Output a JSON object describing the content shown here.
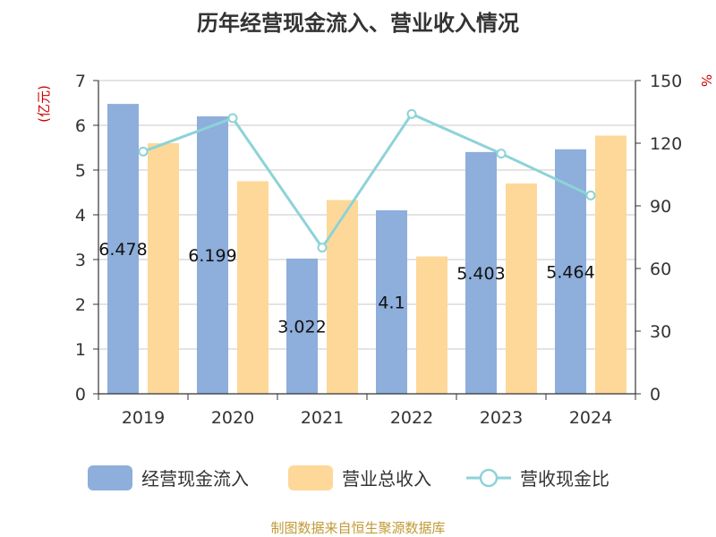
{
  "chart_data": {
    "type": "bar",
    "title": "历年经营现金流入、营业收入情况",
    "categories": [
      "2019",
      "2020",
      "2021",
      "2022",
      "2023",
      "2024"
    ],
    "left_axis_unit": "(亿元)",
    "right_axis_unit": "%",
    "left_ylim": [
      0,
      7
    ],
    "left_ticks": [
      0,
      1,
      2,
      3,
      4,
      5,
      6,
      7
    ],
    "right_ylim": [
      0,
      150
    ],
    "right_ticks": [
      0,
      30,
      60,
      90,
      120,
      150
    ],
    "grid": true,
    "legend_position": "bottom",
    "series": [
      {
        "name": "经营现金流入",
        "type": "bar",
        "axis": "left",
        "color": "#8eaedb",
        "values": [
          6.478,
          6.199,
          3.022,
          4.1,
          5.403,
          5.464
        ],
        "labels": [
          "6.478",
          "6.199",
          "3.022",
          "4.1",
          "5.403",
          "5.464"
        ]
      },
      {
        "name": "营业总收入",
        "type": "bar",
        "axis": "left",
        "color": "#fdd899",
        "values": [
          5.6,
          4.75,
          4.33,
          3.07,
          4.7,
          5.77
        ]
      },
      {
        "name": "营收现金比",
        "type": "line",
        "axis": "right",
        "color": "#8dd3d8",
        "values": [
          116,
          132,
          70,
          134,
          115,
          95
        ]
      }
    ],
    "source": "制图数据来自恒生聚源数据库"
  }
}
